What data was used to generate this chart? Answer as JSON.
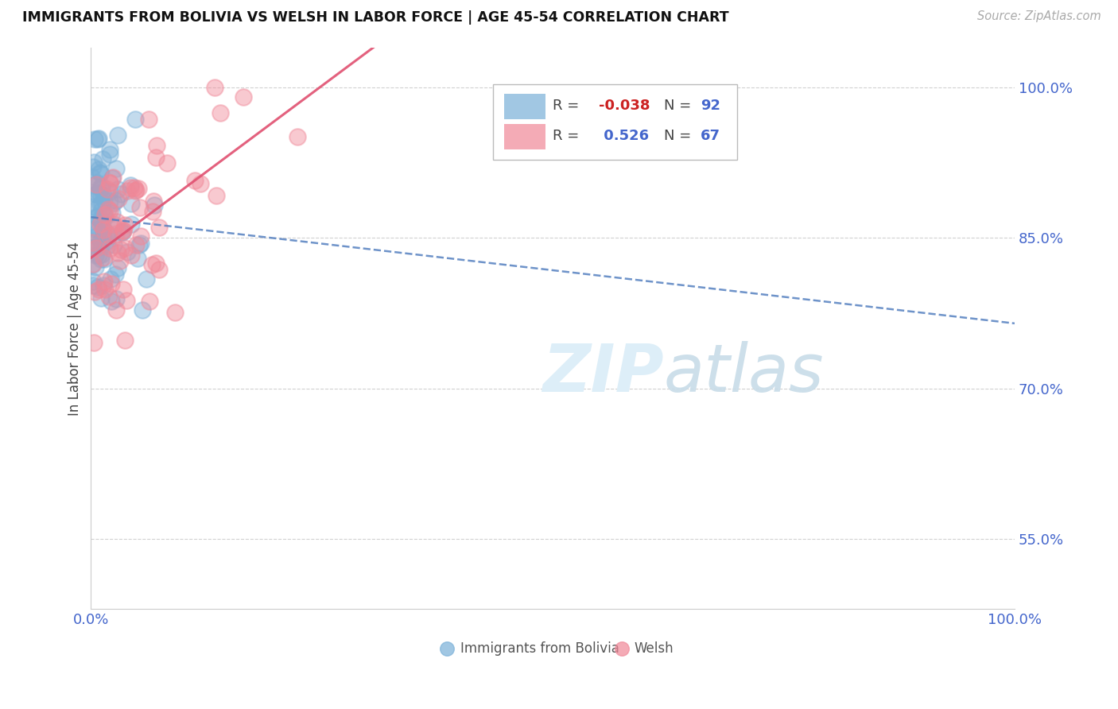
{
  "title": "IMMIGRANTS FROM BOLIVIA VS WELSH IN LABOR FORCE | AGE 45-54 CORRELATION CHART",
  "source": "Source: ZipAtlas.com",
  "ylabel": "In Labor Force | Age 45-54",
  "xlim": [
    0,
    1
  ],
  "ylim": [
    0.48,
    1.04
  ],
  "yticks": [
    0.55,
    0.7,
    0.85,
    1.0
  ],
  "ytick_labels": [
    "55.0%",
    "70.0%",
    "85.0%",
    "100.0%"
  ],
  "xtick_labels": [
    "0.0%",
    "100.0%"
  ],
  "bolivia_R": -0.038,
  "bolivia_N": 92,
  "welsh_R": 0.526,
  "welsh_N": 67,
  "bolivia_color": "#7ab0d8",
  "welsh_color": "#f08898",
  "bolivia_line_color": "#5580c0",
  "welsh_line_color": "#e05070",
  "watermark_color": "#ddeef8",
  "background_color": "#ffffff",
  "grid_color": "#cccccc",
  "title_color": "#111111",
  "source_color": "#aaaaaa",
  "tick_color": "#4466cc",
  "ylabel_color": "#444444",
  "legend_R_neg_color": "#cc2222",
  "legend_R_pos_color": "#4466cc",
  "legend_N_color": "#4466cc",
  "legend_text_color": "#444444",
  "bottom_legend_bolivia_color": "#7ab0d8",
  "bottom_legend_welsh_color": "#f08898"
}
